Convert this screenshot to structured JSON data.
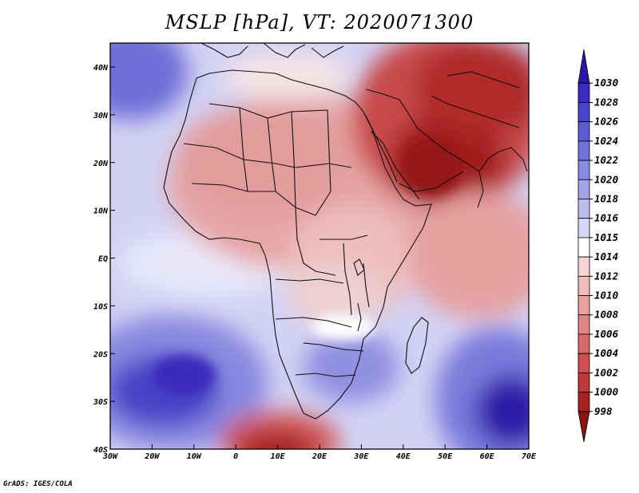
{
  "map": {
    "title": "MSLP [hPa], VT: 2020071300",
    "credit": "GrADS: IGES/COLA",
    "x_ticks": [
      "30W",
      "20W",
      "10W",
      "0",
      "10E",
      "20E",
      "30E",
      "40E",
      "50E",
      "60E",
      "70E"
    ],
    "y_ticks": [
      "40N",
      "30N",
      "20N",
      "10N",
      "EQ",
      "10S",
      "20S",
      "30S",
      "40S"
    ],
    "colorbar": {
      "levels": [
        "1030",
        "1028",
        "1026",
        "1024",
        "1022",
        "1020",
        "1018",
        "1016",
        "1015",
        "1014",
        "1012",
        "1010",
        "1008",
        "1006",
        "1004",
        "1002",
        "1000",
        "998"
      ],
      "colors": [
        "#2a16a8",
        "#3a2cc0",
        "#4a44cc",
        "#5b5bd4",
        "#7272dc",
        "#8a8ae2",
        "#a3a3e8",
        "#bcbcef",
        "#d6d6f6",
        "#ffffff",
        "#f4d6d6",
        "#f0bcbc",
        "#e8a0a0",
        "#e08686",
        "#d86a6a",
        "#cc5050",
        "#c03838",
        "#a82222",
        "#8e1414"
      ]
    },
    "colors": {
      "land_line": "#111111",
      "frame": "#000000"
    }
  }
}
